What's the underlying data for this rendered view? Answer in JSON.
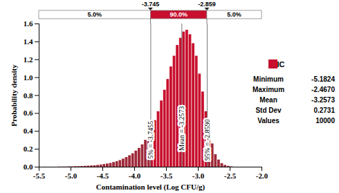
{
  "chart_data": {
    "type": "histogram",
    "x_label": "Contamination level (Log CFU/g)",
    "y_label": "Probability density",
    "bins": [
      -5.2,
      -5.15,
      -5.1,
      -5.05,
      -5.0,
      -4.95,
      -4.9,
      -4.85,
      -4.8,
      -4.75,
      -4.7,
      -4.65,
      -4.6,
      -4.55,
      -4.5,
      -4.45,
      -4.4,
      -4.35,
      -4.3,
      -4.25,
      -4.2,
      -4.15,
      -4.1,
      -4.05,
      -4.0,
      -3.95,
      -3.9,
      -3.85,
      -3.8,
      -3.75,
      -3.7,
      -3.65,
      -3.6,
      -3.55,
      -3.5,
      -3.45,
      -3.4,
      -3.35,
      -3.3,
      -3.25,
      -3.2,
      -3.15,
      -3.1,
      -3.05,
      -3.0,
      -2.95,
      -2.9,
      -2.85,
      -2.8,
      -2.75,
      -2.7,
      -2.65,
      -2.6,
      -2.55,
      -2.5,
      -2.45
    ],
    "series": [
      {
        "name": "IC",
        "color": "#c8102e",
        "values": [
          0.002,
          0.002,
          0.002,
          0.004,
          0.004,
          0.006,
          0.006,
          0.008,
          0.01,
          0.012,
          0.014,
          0.016,
          0.02,
          0.024,
          0.03,
          0.036,
          0.042,
          0.052,
          0.062,
          0.074,
          0.09,
          0.108,
          0.128,
          0.15,
          0.18,
          0.21,
          0.25,
          0.3,
          0.34,
          0.44,
          0.52,
          0.62,
          0.74,
          0.86,
          0.98,
          1.12,
          1.24,
          1.36,
          1.44,
          1.51,
          1.53,
          1.48,
          1.38,
          1.24,
          1.04,
          0.84,
          0.62,
          0.44,
          0.26,
          0.14,
          0.08,
          0.04,
          0.02,
          0.01,
          0.004
        ],
        "colors": [
          "#9e2a3a",
          "#9e2a3a",
          "#9e2a3a",
          "#9e2a3a",
          "#9e2a3a",
          "#9e2a3a",
          "#9e2a3a",
          "#9e2a3a",
          "#9e2a3a",
          "#9e2a3a",
          "#9e2a3a",
          "#9e2a3a",
          "#9e2a3a",
          "#9e2a3a",
          "#9e2a3a",
          "#9e2a3a",
          "#9e2a3a",
          "#9e2a3a",
          "#9e2a3a",
          "#9e2a3a",
          "#9e2a3a",
          "#9e2a3a",
          "#9e2a3a",
          "#9e2a3a",
          "#9e2a3a",
          "#9e2a3a",
          "#9e2a3a",
          "#9e2a3a",
          "#9e2a3a",
          "#c8102e",
          "#c8102e",
          "#c8102e",
          "#c8102e",
          "#c8102e",
          "#c8102e",
          "#c8102e",
          "#c8102e",
          "#c8102e",
          "#c8102e",
          "#c8102e",
          "#c8102e",
          "#c8102e",
          "#c8102e",
          "#c8102e",
          "#c8102e",
          "#c8102e",
          "#c8102e",
          "#9e2a3a",
          "#9e2a3a",
          "#9e2a3a",
          "#9e2a3a",
          "#9e2a3a",
          "#9e2a3a",
          "#9e2a3a",
          "#9e2a3a"
        ]
      }
    ],
    "xlim": [
      -5.5,
      -2.0
    ],
    "xticks": [
      {
        "value": -5.5,
        "label": "-5.5"
      },
      {
        "value": -5.0,
        "label": "-5.0"
      },
      {
        "value": -4.5,
        "label": "-4.5"
      },
      {
        "value": -4.0,
        "label": "-4.0"
      },
      {
        "value": -3.5,
        "label": "-3.5"
      },
      {
        "value": -3.0,
        "label": "-3.0"
      },
      {
        "value": -2.5,
        "label": "-2.5"
      },
      {
        "value": -2.0,
        "label": "-2.0"
      }
    ],
    "ylim": [
      0,
      1.6
    ],
    "yticks": [
      {
        "value": 0,
        "label": "0.0"
      },
      {
        "value": 0.2,
        "label": "0.2"
      },
      {
        "value": 0.4,
        "label": "0.4"
      },
      {
        "value": 0.6,
        "label": "0.6"
      },
      {
        "value": 0.8,
        "label": "0.8"
      },
      {
        "value": 1.0,
        "label": "1.0"
      },
      {
        "value": 1.2,
        "label": "1.2"
      },
      {
        "value": 1.4,
        "label": "1.4"
      },
      {
        "value": 1.6,
        "label": "1.6"
      }
    ],
    "legend": "right",
    "statistics": [
      {
        "name": "Minimum",
        "value": -5.1824
      },
      {
        "name": "Maximum",
        "value": -2.467,
        "value_label": "-2.4670"
      },
      {
        "name": "Mean",
        "value": -3.2573
      },
      {
        "name": "Std Dev",
        "value": 0.2731
      },
      {
        "name": "Values",
        "value": 10000
      }
    ],
    "interval": {
      "lower": -3.745,
      "upper": -2.859,
      "shares": [
        {
          "value": 5,
          "label": "5.0%"
        },
        {
          "value": 90,
          "label": "90.0%"
        },
        {
          "value": 5,
          "label": "5.0%"
        }
      ]
    },
    "reference_lines": [
      {
        "value": -3.7455,
        "label": "5% = -3.7455"
      },
      {
        "value": -3.2573,
        "label": "Mean = -3.2573"
      },
      {
        "value": -2.859,
        "label": "95% = -2.8590"
      }
    ]
  }
}
